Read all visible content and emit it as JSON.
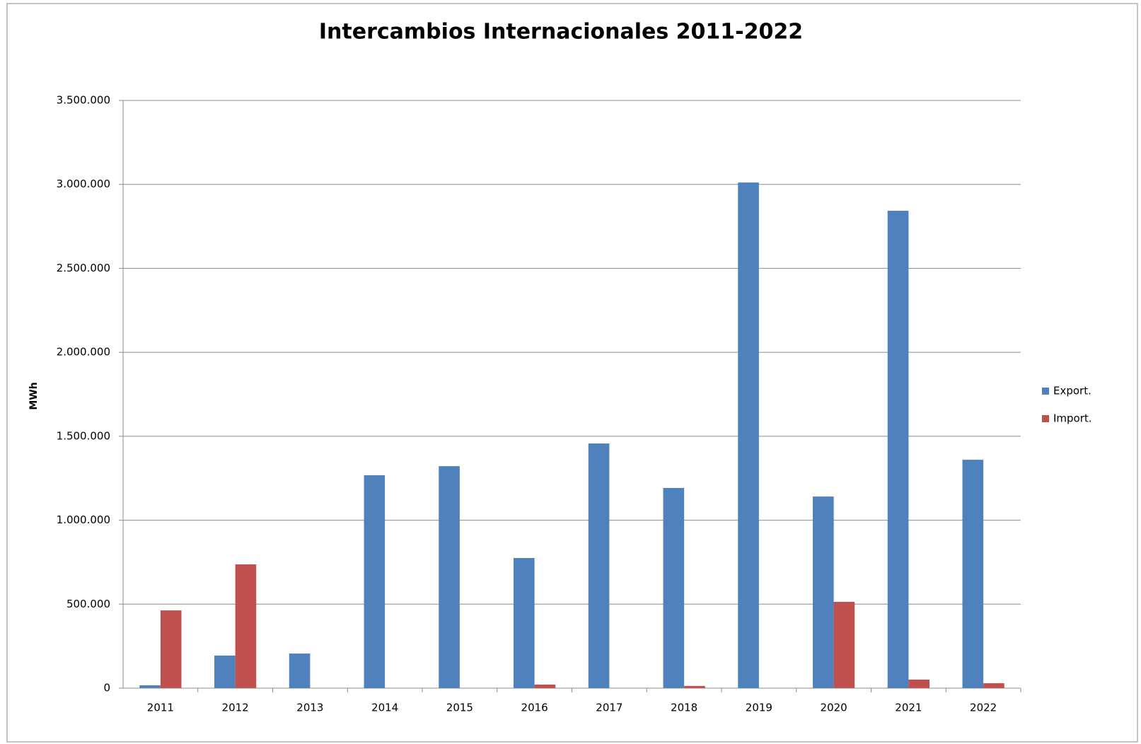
{
  "chart_data": {
    "type": "bar",
    "title": "Intercambios Internacionales  2011-2022",
    "y_label": "MWh",
    "categories": [
      "2011",
      "2012",
      "2013",
      "2014",
      "2015",
      "2016",
      "2017",
      "2018",
      "2019",
      "2020",
      "2021",
      "2022"
    ],
    "series": [
      {
        "name": "Export.",
        "color": "#4f81bd",
        "values": [
          17000,
          194000,
          206000,
          1268000,
          1322000,
          775000,
          1457000,
          1192000,
          3011000,
          1141000,
          2843000,
          1360000
        ]
      },
      {
        "name": "Import.",
        "color": "#c0504d",
        "values": [
          463000,
          737000,
          0,
          0,
          0,
          21000,
          0,
          13000,
          0,
          514000,
          51000,
          29000
        ]
      }
    ],
    "ylim": [
      0,
      3500000
    ],
    "yticks": [
      0,
      {
        "value": 500000,
        "label": "500.000"
      },
      {
        "value": 1000000,
        "label": "1.000.000"
      },
      {
        "value": 1500000,
        "label": "1.500.000"
      },
      {
        "value": 2000000,
        "label": "2.000.000"
      },
      {
        "value": 2500000,
        "label": "2.500.000"
      },
      {
        "value": 3000000,
        "label": "3.000.000"
      },
      {
        "value": 3500000,
        "label": "3.500.000"
      }
    ],
    "grid": true,
    "legend": "right"
  }
}
